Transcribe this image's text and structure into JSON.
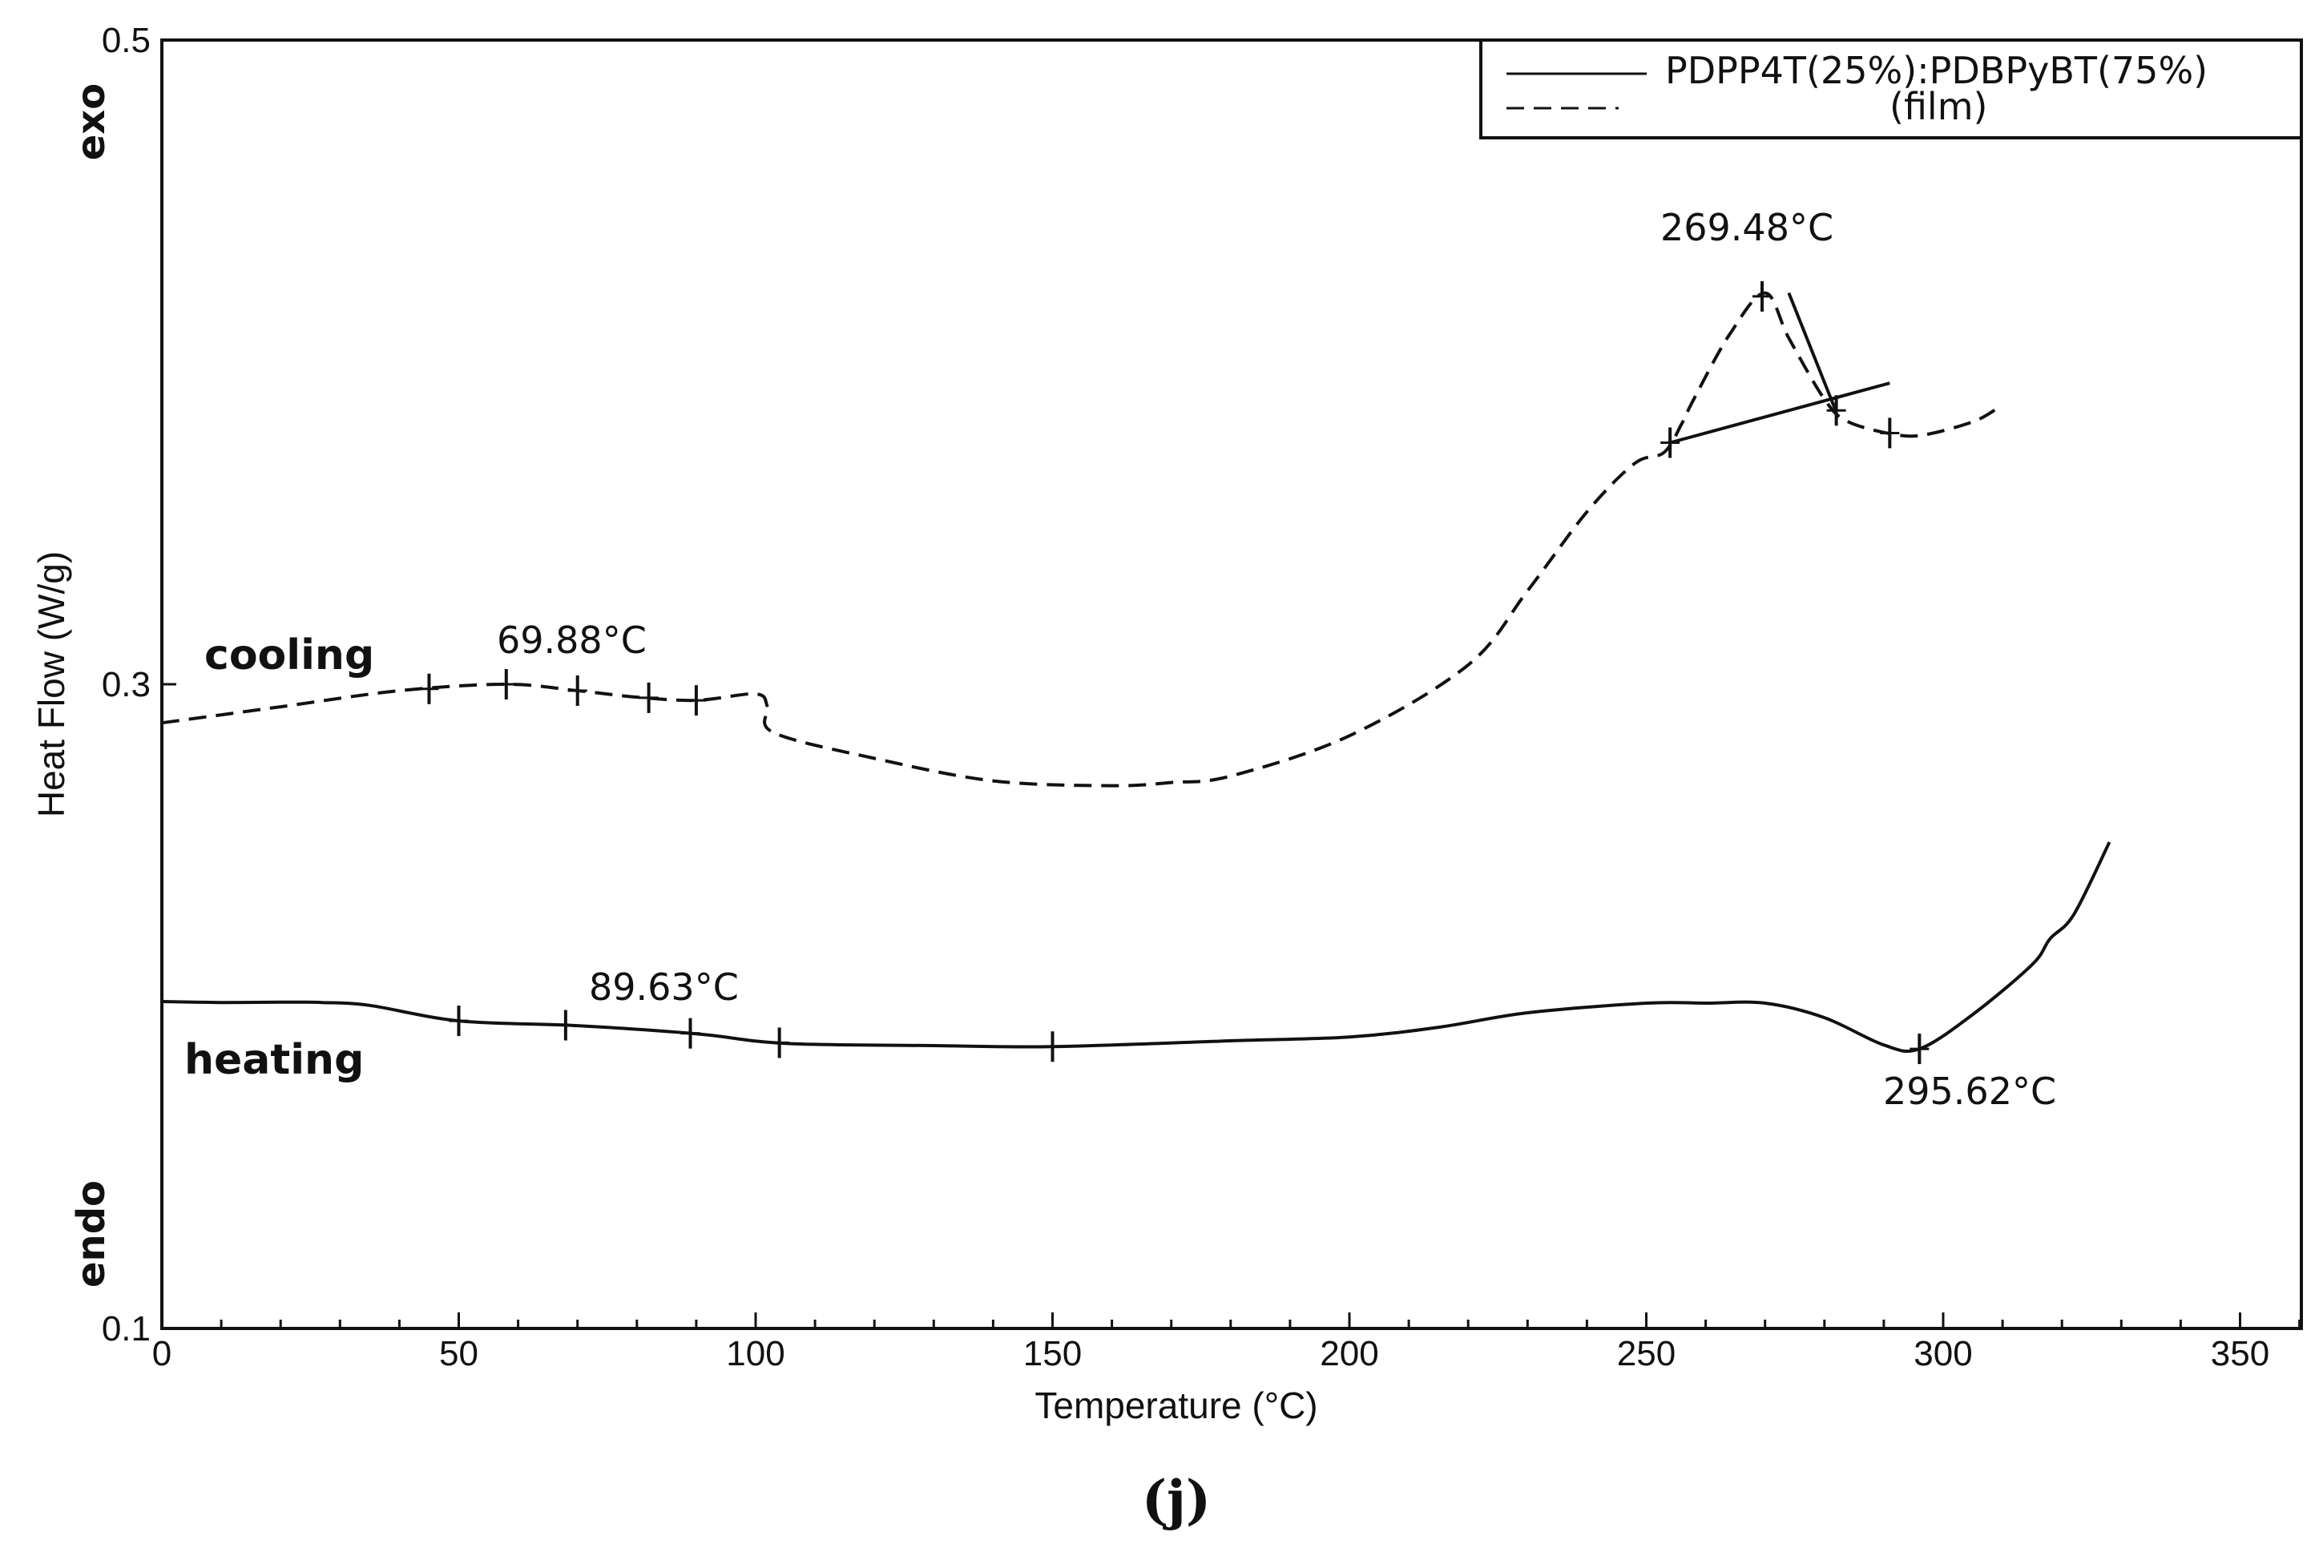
{
  "chart_data": {
    "type": "line",
    "xlabel": "Temperature (°C)",
    "ylabel": "Heat Flow (W/g)",
    "xlim": [
      0,
      360
    ],
    "ylim": [
      0.1,
      0.5
    ],
    "x_ticks": [
      0,
      50,
      100,
      150,
      200,
      250,
      300,
      350
    ],
    "y_ticks": [
      0.1,
      0.3,
      0.5
    ],
    "x_minor_step": 10,
    "y_axis_side_labels": {
      "top": "exo",
      "bottom": "endo"
    },
    "panel_label": "(j)",
    "legend": {
      "position": "top-right",
      "line1": "PDPP4T(25%):PDBPyBT(75%)",
      "line2": "(film)"
    },
    "series": [
      {
        "name": "heating",
        "style": "solid",
        "x": [
          0,
          10,
          20,
          27,
          35,
          50,
          70,
          90,
          105,
          130,
          150,
          180,
          200,
          215,
          230,
          250,
          260,
          270,
          280,
          290,
          296,
          305,
          315,
          318,
          322,
          328
        ],
        "y": [
          0.2015,
          0.2012,
          0.2013,
          0.2012,
          0.2003,
          0.1955,
          0.194,
          0.1915,
          0.1885,
          0.1878,
          0.1875,
          0.1893,
          0.1905,
          0.1935,
          0.198,
          0.201,
          0.201,
          0.201,
          0.1965,
          0.188,
          0.1868,
          0.1975,
          0.213,
          0.221,
          0.2285,
          0.251
        ],
        "label": "heating",
        "markers": [
          50,
          68,
          89,
          104,
          150,
          296
        ],
        "annotations": [
          {
            "text": "89.63°C",
            "x": 89.63
          },
          {
            "text": "295.62°C",
            "x": 295.62
          }
        ]
      },
      {
        "name": "cooling",
        "style": "dashed",
        "x": [
          0,
          20,
          40,
          58,
          70,
          80,
          90,
          100,
          102,
          103,
          120,
          140,
          160,
          170,
          180,
          200,
          220,
          230,
          240,
          248,
          253,
          256,
          258,
          264,
          270,
          274,
          280,
          284,
          292,
          297,
          305,
          309
        ],
        "y": [
          0.288,
          0.293,
          0.298,
          0.3,
          0.298,
          0.296,
          0.295,
          0.297,
          0.293,
          0.285,
          0.277,
          0.27,
          0.2685,
          0.2695,
          0.2715,
          0.284,
          0.306,
          0.329,
          0.3535,
          0.3685,
          0.372,
          0.381,
          0.3885,
          0.4085,
          0.4215,
          0.4075,
          0.3885,
          0.3815,
          0.3775,
          0.3775,
          0.3815,
          0.3855
        ],
        "label": "cooling",
        "markers": [
          45,
          58,
          70,
          82,
          90,
          254,
          269.5,
          282,
          291
        ],
        "annotations": [
          {
            "text": "69.88°C",
            "x": 69.88
          },
          {
            "text": "269.48°C",
            "x": 269.48
          }
        ],
        "construction_lines": [
          {
            "x": [
              254,
              291
            ],
            "y": [
              0.375,
              0.3935
            ]
          },
          {
            "x": [
              274,
              282
            ],
            "y": [
              0.4215,
              0.3845
            ]
          }
        ]
      }
    ]
  }
}
